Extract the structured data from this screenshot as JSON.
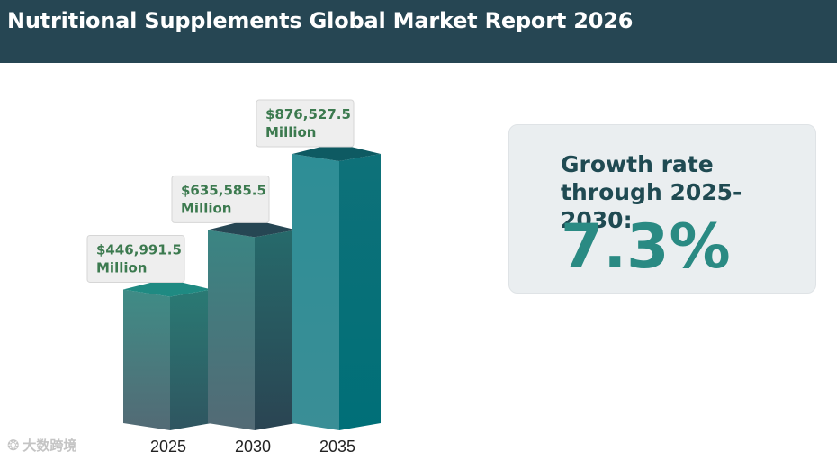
{
  "header": {
    "title": "Nutritional Supplements Global Market Report 2026"
  },
  "growth": {
    "label": "Growth rate through 2025-2030:",
    "value": "7.3%"
  },
  "watermark": {
    "text": "大数跨境"
  },
  "colors": {
    "header_bg": "#264653",
    "accent": "#2a8a83",
    "label_text": "#3c7a4f",
    "bar_2025": "#3d8f88",
    "bar_2030": "#2c6f72",
    "bar_2035": "#1f8c93"
  },
  "chart_data": {
    "type": "bar",
    "title": "",
    "xlabel": "",
    "ylabel": "",
    "categories": [
      "2025",
      "2030",
      "2035"
    ],
    "values": [
      446991.5,
      635585.5,
      876527.5
    ],
    "value_labels": [
      [
        "$446,991.5",
        "Million"
      ],
      [
        "$635,585.5",
        "Million"
      ],
      [
        "$876,527.5",
        "Million"
      ]
    ],
    "unit": "Million USD",
    "ylim": [
      0,
      876527.5
    ]
  }
}
